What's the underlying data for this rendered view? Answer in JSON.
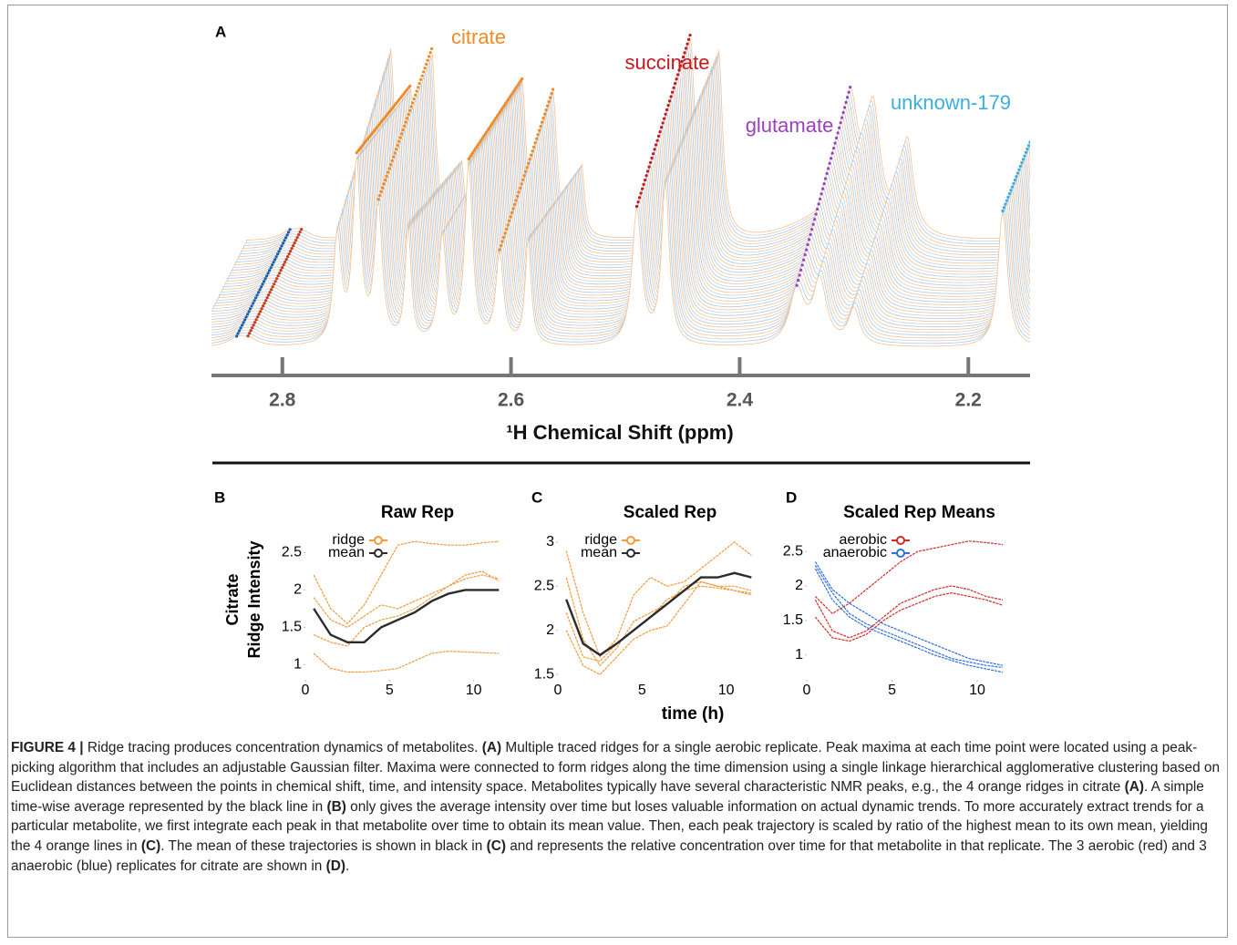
{
  "chart_data": [
    {
      "type": "waterfall",
      "panel": "A",
      "xlabel": "¹H Chemical Shift (ppm)",
      "xlim": [
        2.862,
        2.146
      ],
      "xticks": [
        2.8,
        2.6,
        2.4,
        2.2
      ],
      "annotations": [
        {
          "text": "citrate",
          "color": "#f08a24"
        },
        {
          "text": "succinate",
          "color": "#c8161d"
        },
        {
          "text": "glutamate",
          "color": "#9b3fbf"
        },
        {
          "text": "unknown-179",
          "color": "#3aaee0"
        }
      ]
    },
    {
      "type": "line",
      "panel": "B",
      "title": "Raw Rep",
      "ylabel": [
        "Citrate",
        "Ridge Intensity"
      ],
      "x": [
        0.5,
        1.5,
        2.5,
        3.5,
        4.5,
        5.5,
        6.5,
        7.5,
        8.5,
        9.5,
        10.5,
        11.5
      ],
      "xlim": [
        0,
        11.7
      ],
      "xticks": [
        0,
        5,
        10
      ],
      "ylim": [
        0.87,
        2.7
      ],
      "yticks": [
        1,
        1.5,
        2,
        2.5
      ],
      "series": [
        {
          "name": "ridge",
          "color": "#f39a3b",
          "lines": [
            [
              2.2,
              1.75,
              1.55,
              1.8,
              2.2,
              2.6,
              2.65,
              2.62,
              2.6,
              2.6,
              2.63,
              2.65
            ],
            [
              1.9,
              1.6,
              1.5,
              1.65,
              1.8,
              1.75,
              1.85,
              1.95,
              2.05,
              2.2,
              2.25,
              2.12
            ],
            [
              1.4,
              1.3,
              1.25,
              1.5,
              1.6,
              1.65,
              1.75,
              1.9,
              2.05,
              2.15,
              2.2,
              2.15
            ],
            [
              1.15,
              0.95,
              0.9,
              0.9,
              0.92,
              0.95,
              1.05,
              1.15,
              1.18,
              1.17,
              1.16,
              1.15
            ]
          ]
        },
        {
          "name": "mean",
          "color": "#2b2b2b",
          "lines": [
            [
              1.75,
              1.4,
              1.3,
              1.3,
              1.5,
              1.6,
              1.7,
              1.85,
              1.95,
              2.0,
              2.0,
              2.0
            ]
          ]
        }
      ]
    },
    {
      "type": "line",
      "panel": "C",
      "title": "Scaled Rep",
      "xlabel": "time (h)",
      "x": [
        0.5,
        1.5,
        2.5,
        3.5,
        4.5,
        5.5,
        6.5,
        7.5,
        8.5,
        9.5,
        10.5,
        11.5
      ],
      "xlim": [
        0,
        11.7
      ],
      "xticks": [
        0,
        5,
        10
      ],
      "ylim": [
        1.45,
        3.05
      ],
      "yticks": [
        1.5,
        2,
        2.5,
        3
      ],
      "series": [
        {
          "name": "ridge",
          "color": "#f39a3b",
          "lines": [
            [
              2.9,
              2.2,
              1.7,
              1.9,
              2.4,
              2.6,
              2.5,
              2.55,
              2.7,
              2.85,
              3.0,
              2.85
            ],
            [
              2.6,
              1.9,
              1.6,
              1.8,
              2.1,
              2.2,
              2.3,
              2.5,
              2.55,
              2.5,
              2.5,
              2.45
            ],
            [
              2.2,
              1.7,
              1.65,
              1.85,
              2.0,
              2.15,
              2.35,
              2.45,
              2.5,
              2.48,
              2.45,
              2.4
            ],
            [
              2.0,
              1.6,
              1.5,
              1.7,
              1.9,
              2.0,
              2.05,
              2.3,
              2.55,
              2.5,
              2.45,
              2.42
            ]
          ]
        },
        {
          "name": "mean",
          "color": "#2b2b2b",
          "lines": [
            [
              2.35,
              1.85,
              1.72,
              1.85,
              2.0,
              2.15,
              2.3,
              2.45,
              2.6,
              2.6,
              2.65,
              2.6
            ]
          ]
        }
      ]
    },
    {
      "type": "line",
      "panel": "D",
      "title": "Scaled Rep Means",
      "x": [
        0.5,
        1.5,
        2.5,
        3.5,
        4.5,
        5.5,
        6.5,
        7.5,
        8.5,
        9.5,
        10.5,
        11.5
      ],
      "xlim": [
        0,
        11.6
      ],
      "xticks": [
        0,
        5,
        10
      ],
      "ylim": [
        0.72,
        2.7
      ],
      "yticks": [
        1,
        1.5,
        2,
        2.5
      ],
      "series": [
        {
          "name": "aerobic",
          "color": "#d42a2a",
          "lines": [
            [
              1.85,
              1.6,
              1.75,
              1.95,
              2.15,
              2.35,
              2.5,
              2.55,
              2.6,
              2.65,
              2.63,
              2.6
            ],
            [
              1.8,
              1.35,
              1.25,
              1.35,
              1.55,
              1.75,
              1.85,
              1.95,
              2.0,
              1.95,
              1.85,
              1.8
            ],
            [
              1.55,
              1.25,
              1.2,
              1.3,
              1.5,
              1.65,
              1.75,
              1.85,
              1.9,
              1.85,
              1.8,
              1.72
            ]
          ]
        },
        {
          "name": "anaerobic",
          "color": "#2f6fe0",
          "lines": [
            [
              2.35,
              1.95,
              1.75,
              1.6,
              1.45,
              1.35,
              1.25,
              1.15,
              1.05,
              0.95,
              0.9,
              0.85
            ],
            [
              2.3,
              1.9,
              1.6,
              1.45,
              1.35,
              1.25,
              1.15,
              1.05,
              0.95,
              0.9,
              0.85,
              0.82
            ],
            [
              2.25,
              1.8,
              1.55,
              1.4,
              1.3,
              1.2,
              1.1,
              1.0,
              0.92,
              0.85,
              0.8,
              0.75
            ]
          ]
        }
      ]
    }
  ],
  "caption": [
    {
      "text": "FIGURE 4 | ",
      "bold": true
    },
    {
      "text": "Ridge tracing produces concentration dynamics of metabolites. ",
      "bold": false
    },
    {
      "text": "(A)",
      "bold": true
    },
    {
      "text": " Multiple traced ridges for a single aerobic replicate. Peak maxima at each time point were located using a peak-picking algorithm that includes an adjustable Gaussian filter. Maxima were connected to form ridges along the time dimension using a single linkage hierarchical agglomerative clustering based on Euclidean distances between the points in chemical shift, time, and intensity space. Metabolites typically have several characteristic NMR peaks, e.g., the 4 orange ridges in citrate ",
      "bold": false
    },
    {
      "text": "(A)",
      "bold": true
    },
    {
      "text": ". A simple time-wise average represented by the black line in ",
      "bold": false
    },
    {
      "text": "(B)",
      "bold": true
    },
    {
      "text": " only gives the average intensity over time but loses valuable information on actual dynamic trends. To more accurately extract trends for a particular metabolite, we first integrate each peak in that metabolite over time to obtain its mean value. Then, each peak trajectory is scaled by ratio of the highest mean to its own mean, yielding the 4 orange lines in ",
      "bold": false
    },
    {
      "text": "(C)",
      "bold": true
    },
    {
      "text": ". The mean of these trajectories is shown in black in ",
      "bold": false
    },
    {
      "text": "(C)",
      "bold": true
    },
    {
      "text": " and represents the relative concentration over time for that metabolite in that replicate. The 3 aerobic (red) and 3 anaerobic (blue) replicates for citrate are shown in ",
      "bold": false
    },
    {
      "text": "(D)",
      "bold": true
    },
    {
      "text": ".",
      "bold": false
    }
  ]
}
